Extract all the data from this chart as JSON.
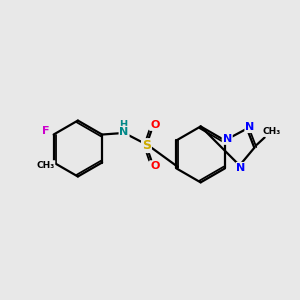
{
  "background_color": "#e8e8e8",
  "bond_color": "#000000",
  "atoms": {
    "F": "#cc00cc",
    "N": "#0000ff",
    "O": "#ff0000",
    "S": "#ccaa00",
    "H": "#008888",
    "C": "#000000"
  },
  "lw": 1.6,
  "dlw": 1.3,
  "doff": 0.07
}
